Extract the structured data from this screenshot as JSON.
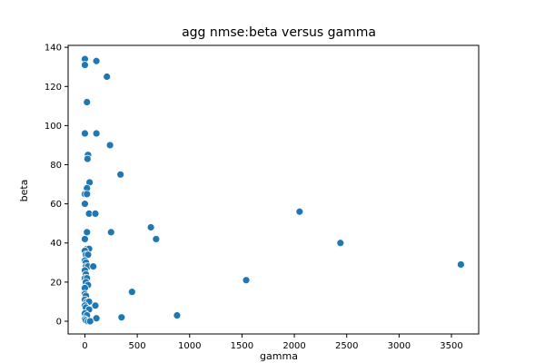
{
  "chart_data": {
    "type": "scatter",
    "title": "agg nmse:beta versus gamma",
    "xlabel": "gamma",
    "ylabel": "beta",
    "xlim": [
      -160,
      3760
    ],
    "ylim": [
      -6.5,
      141
    ],
    "xticks": [
      0,
      500,
      1000,
      1500,
      2000,
      2500,
      3000,
      3500
    ],
    "yticks": [
      0,
      20,
      40,
      60,
      80,
      100,
      120,
      140
    ],
    "grid": false,
    "marker_color": "#1f77b4",
    "series": [
      {
        "points": [
          [
            0,
            134
          ],
          [
            0,
            131
          ],
          [
            110,
            133
          ],
          [
            210,
            125
          ],
          [
            20,
            112
          ],
          [
            0,
            96
          ],
          [
            110,
            96
          ],
          [
            240,
            90
          ],
          [
            30,
            85
          ],
          [
            25,
            83
          ],
          [
            340,
            75
          ],
          [
            45,
            71
          ],
          [
            20,
            68
          ],
          [
            0,
            65
          ],
          [
            20,
            65
          ],
          [
            0,
            60
          ],
          [
            40,
            55
          ],
          [
            100,
            55
          ],
          [
            630,
            48
          ],
          [
            250,
            45.5
          ],
          [
            20,
            45.5
          ],
          [
            680,
            42
          ],
          [
            0,
            42
          ],
          [
            20,
            37
          ],
          [
            40,
            37
          ],
          [
            2050,
            56
          ],
          [
            2440,
            40
          ],
          [
            3590,
            29
          ],
          [
            1540,
            21
          ],
          [
            450,
            15
          ],
          [
            880,
            3
          ],
          [
            350,
            2
          ],
          [
            110,
            1.5
          ],
          [
            100,
            8
          ],
          [
            0,
            36
          ],
          [
            10,
            34
          ],
          [
            30,
            34
          ],
          [
            0,
            31
          ],
          [
            10,
            30
          ],
          [
            10,
            28
          ],
          [
            30,
            28
          ],
          [
            80,
            28
          ],
          [
            0,
            26
          ],
          [
            10,
            24
          ],
          [
            0,
            22
          ],
          [
            20,
            22
          ],
          [
            10,
            20
          ],
          [
            30,
            18.5
          ],
          [
            0,
            17
          ],
          [
            0,
            14
          ],
          [
            10,
            13
          ],
          [
            0,
            11
          ],
          [
            20,
            10
          ],
          [
            40,
            10
          ],
          [
            0,
            8
          ],
          [
            10,
            7
          ],
          [
            40,
            6
          ],
          [
            0,
            4
          ],
          [
            20,
            3
          ],
          [
            0,
            1
          ],
          [
            10,
            0.5
          ],
          [
            30,
            0
          ],
          [
            50,
            0
          ]
        ]
      }
    ]
  }
}
